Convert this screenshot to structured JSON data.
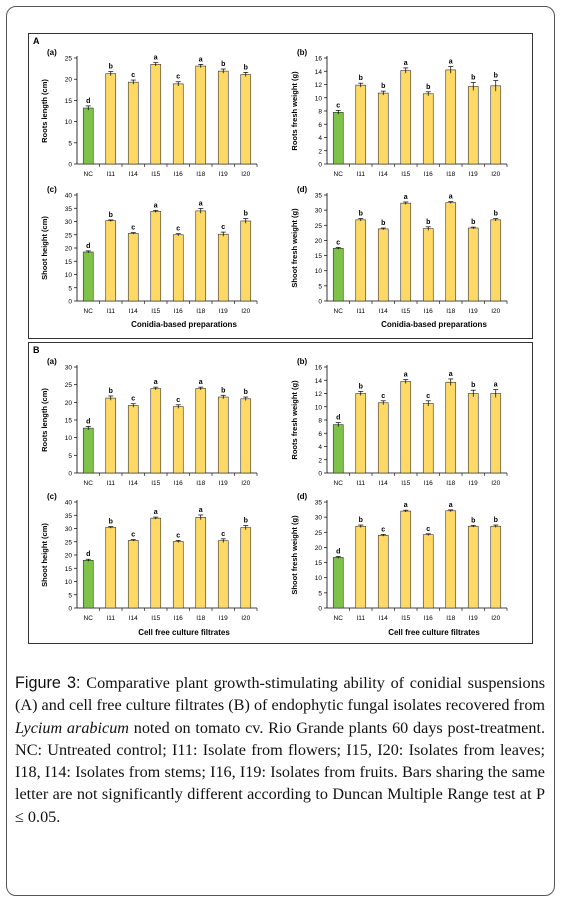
{
  "panels": [
    {
      "label": "A",
      "xaxis_title": "Conidia-based preparations"
    },
    {
      "label": "B",
      "xaxis_title": "Cell free culture filtrates"
    }
  ],
  "chart_data": [
    {
      "type": "bar",
      "panel": "A",
      "subplot": "(a)",
      "ylabel": "Roots length (cm)",
      "ylim": [
        0,
        25
      ],
      "yticks": [
        0,
        5,
        10,
        15,
        20,
        25
      ],
      "categories": [
        "NC",
        "I11",
        "I14",
        "I15",
        "I16",
        "I18",
        "I19",
        "I20"
      ],
      "values": [
        13.2,
        21.3,
        19.3,
        23.5,
        18.9,
        23.1,
        21.9,
        21.1
      ],
      "errors": [
        0.5,
        0.5,
        0.5,
        0.4,
        0.5,
        0.4,
        0.5,
        0.5
      ],
      "letters": [
        "d",
        "b",
        "c",
        "a",
        "c",
        "a",
        "b",
        "b"
      ],
      "colors": [
        "#7fc24a",
        "#ffd966",
        "#ffd966",
        "#ffd966",
        "#ffd966",
        "#ffd966",
        "#ffd966",
        "#ffd966"
      ]
    },
    {
      "type": "bar",
      "panel": "A",
      "subplot": "(b)",
      "ylabel": "Roots fresh weight (g)",
      "ylim": [
        0,
        16
      ],
      "yticks": [
        0,
        2,
        4,
        6,
        8,
        10,
        12,
        14,
        16
      ],
      "categories": [
        "NC",
        "I11",
        "I14",
        "I15",
        "I16",
        "I18",
        "I19",
        "I20"
      ],
      "values": [
        7.8,
        11.9,
        10.7,
        14.1,
        10.6,
        14.2,
        11.7,
        11.8
      ],
      "errors": [
        0.3,
        0.3,
        0.3,
        0.4,
        0.3,
        0.5,
        0.6,
        0.8
      ],
      "letters": [
        "c",
        "b",
        "b",
        "a",
        "b",
        "a",
        "b",
        "b"
      ],
      "colors": [
        "#7fc24a",
        "#ffd966",
        "#ffd966",
        "#ffd966",
        "#ffd966",
        "#ffd966",
        "#ffd966",
        "#ffd966"
      ]
    },
    {
      "type": "bar",
      "panel": "A",
      "subplot": "(c)",
      "ylabel": "Shoot height (cm)",
      "ylim": [
        0,
        40
      ],
      "yticks": [
        0,
        5,
        10,
        15,
        20,
        25,
        30,
        35,
        40
      ],
      "categories": [
        "NC",
        "I11",
        "I14",
        "I15",
        "I16",
        "I18",
        "I19",
        "I20"
      ],
      "values": [
        18.5,
        30.3,
        25.5,
        33.8,
        25.0,
        34.0,
        25.2,
        30.2
      ],
      "errors": [
        0.4,
        0.3,
        0.3,
        0.4,
        0.4,
        0.9,
        0.8,
        0.9
      ],
      "letters": [
        "d",
        "b",
        "c",
        "a",
        "c",
        "a",
        "c",
        "b"
      ],
      "colors": [
        "#7fc24a",
        "#ffd966",
        "#ffd966",
        "#ffd966",
        "#ffd966",
        "#ffd966",
        "#ffd966",
        "#ffd966"
      ]
    },
    {
      "type": "bar",
      "panel": "A",
      "subplot": "(d)",
      "ylabel": "Shoot fresh weight (g)",
      "ylim": [
        0,
        35
      ],
      "yticks": [
        0,
        5,
        10,
        15,
        20,
        25,
        30,
        35
      ],
      "categories": [
        "NC",
        "I11",
        "I14",
        "I15",
        "I16",
        "I18",
        "I19",
        "I20"
      ],
      "values": [
        17.4,
        26.8,
        23.8,
        32.3,
        23.9,
        32.5,
        24.1,
        26.8
      ],
      "errors": [
        0.3,
        0.4,
        0.3,
        0.4,
        0.6,
        0.3,
        0.3,
        0.4
      ],
      "letters": [
        "c",
        "b",
        "b",
        "a",
        "b",
        "a",
        "b",
        "b"
      ],
      "colors": [
        "#7fc24a",
        "#ffd966",
        "#ffd966",
        "#ffd966",
        "#ffd966",
        "#ffd966",
        "#ffd966",
        "#ffd966"
      ]
    },
    {
      "type": "bar",
      "panel": "B",
      "subplot": "(a)",
      "ylabel": "Roots length (cm)",
      "ylim": [
        0,
        30
      ],
      "yticks": [
        0,
        5,
        10,
        15,
        20,
        25,
        30
      ],
      "categories": [
        "NC",
        "I11",
        "I14",
        "I15",
        "I16",
        "I18",
        "I19",
        "I20"
      ],
      "values": [
        12.7,
        21.2,
        19.1,
        23.9,
        18.8,
        23.9,
        21.5,
        21.0
      ],
      "errors": [
        0.5,
        0.6,
        0.5,
        0.4,
        0.5,
        0.4,
        0.5,
        0.5
      ],
      "letters": [
        "d",
        "b",
        "c",
        "a",
        "c",
        "a",
        "b",
        "b"
      ],
      "colors": [
        "#7fc24a",
        "#ffd966",
        "#ffd966",
        "#ffd966",
        "#ffd966",
        "#ffd966",
        "#ffd966",
        "#ffd966"
      ]
    },
    {
      "type": "bar",
      "panel": "B",
      "subplot": "(b)",
      "ylabel": "Roots fresh weight (g)",
      "ylim": [
        0,
        16
      ],
      "yticks": [
        0,
        2,
        4,
        6,
        8,
        10,
        12,
        14,
        16
      ],
      "categories": [
        "NC",
        "I11",
        "I14",
        "I15",
        "I16",
        "I18",
        "I19",
        "I20"
      ],
      "values": [
        7.3,
        12.0,
        10.6,
        13.8,
        10.5,
        13.7,
        12.0,
        12.0
      ],
      "errors": [
        0.3,
        0.3,
        0.3,
        0.3,
        0.4,
        0.5,
        0.5,
        0.6
      ],
      "letters": [
        "d",
        "b",
        "c",
        "a",
        "c",
        "a",
        "b",
        "a"
      ],
      "colors": [
        "#7fc24a",
        "#ffd966",
        "#ffd966",
        "#ffd966",
        "#ffd966",
        "#ffd966",
        "#ffd966",
        "#ffd966"
      ]
    },
    {
      "type": "bar",
      "panel": "B",
      "subplot": "(c)",
      "ylabel": "Shoot height (cm)",
      "ylim": [
        0,
        40
      ],
      "yticks": [
        0,
        5,
        10,
        15,
        20,
        25,
        30,
        35,
        40
      ],
      "categories": [
        "NC",
        "I11",
        "I14",
        "I15",
        "I16",
        "I18",
        "I19",
        "I20"
      ],
      "values": [
        18.0,
        30.4,
        25.5,
        33.9,
        25.1,
        34.2,
        25.4,
        30.3
      ],
      "errors": [
        0.4,
        0.3,
        0.3,
        0.4,
        0.4,
        0.9,
        0.7,
        0.8
      ],
      "letters": [
        "d",
        "b",
        "c",
        "a",
        "c",
        "a",
        "c",
        "b"
      ],
      "colors": [
        "#7fc24a",
        "#ffd966",
        "#ffd966",
        "#ffd966",
        "#ffd966",
        "#ffd966",
        "#ffd966",
        "#ffd966"
      ]
    },
    {
      "type": "bar",
      "panel": "B",
      "subplot": "(d)",
      "ylabel": "Shoot  fresh weight (g)",
      "ylim": [
        0,
        35
      ],
      "yticks": [
        0,
        5,
        10,
        15,
        20,
        25,
        30,
        35
      ],
      "categories": [
        "NC",
        "I11",
        "I14",
        "I15",
        "I16",
        "I18",
        "I19",
        "I20"
      ],
      "values": [
        16.7,
        27.0,
        24.0,
        32.0,
        24.2,
        32.1,
        27.0,
        27.0
      ],
      "errors": [
        0.3,
        0.4,
        0.3,
        0.3,
        0.3,
        0.3,
        0.3,
        0.4
      ],
      "letters": [
        "d",
        "b",
        "c",
        "a",
        "c",
        "a",
        "b",
        "b"
      ],
      "colors": [
        "#7fc24a",
        "#ffd966",
        "#ffd966",
        "#ffd966",
        "#ffd966",
        "#ffd966",
        "#ffd966",
        "#ffd966"
      ]
    }
  ],
  "caption": {
    "label": "Figure 3:",
    "part1": " Comparative plant growth-stimulating ability of conidial suspensions (A) and cell free culture filtrates (B) of endophytic fungal isolates recovered from ",
    "species": "Lycium arabicum",
    "part2": " noted on tomato cv. Rio Grande plants 60 days post-treatment. NC: Untreated control; I11: Isolate from flowers; I15, I20: Isolates from leaves; I18, I14: Isolates from stems; I16, I19: Isolates from fruits. Bars sharing the same letter are not significantly different according to Duncan Multiple Range test at P ≤ 0.05."
  }
}
